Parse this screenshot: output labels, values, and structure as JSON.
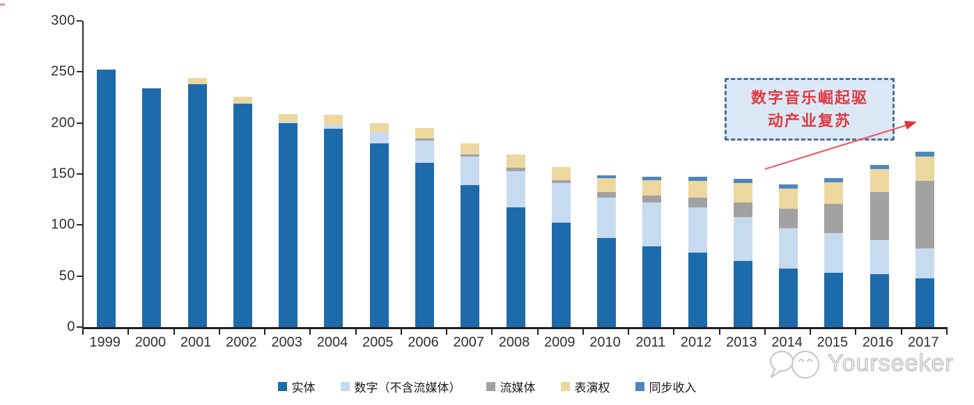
{
  "chart_data": {
    "type": "bar",
    "stacked": true,
    "title": "",
    "xlabel": "",
    "ylabel": "",
    "categories": [
      "1999",
      "2000",
      "2001",
      "2002",
      "2003",
      "2004",
      "2005",
      "2006",
      "2007",
      "2008",
      "2009",
      "2010",
      "2011",
      "2012",
      "2013",
      "2014",
      "2015",
      "2016",
      "2017"
    ],
    "series": [
      {
        "name": "实体",
        "color": "#1e6bac",
        "values": [
          252,
          234,
          238,
          219,
          200,
          194,
          180,
          161,
          139,
          117,
          102,
          87,
          79,
          73,
          65,
          57,
          53,
          52,
          48
        ]
      },
      {
        "name": "数字（不含流媒体）",
        "color": "#c7dbf0",
        "values": [
          0,
          0,
          0,
          0,
          1,
          4,
          11,
          22,
          28,
          36,
          39,
          40,
          43,
          44,
          43,
          40,
          39,
          33,
          29
        ]
      },
      {
        "name": "流媒体",
        "color": "#a2a2a2",
        "values": [
          0,
          0,
          0,
          0,
          0,
          0,
          0,
          2,
          2,
          3,
          3,
          5,
          7,
          10,
          14,
          19,
          29,
          47,
          66
        ]
      },
      {
        "name": "表演权",
        "color": "#ecd89f",
        "values": [
          0,
          0,
          6,
          7,
          8,
          10,
          9,
          10,
          11,
          13,
          13,
          14,
          15,
          16,
          19,
          20,
          21,
          23,
          24
        ]
      },
      {
        "name": "同步收入",
        "color": "#4f86c0",
        "values": [
          0,
          0,
          0,
          0,
          0,
          0,
          0,
          0,
          0,
          0,
          0,
          3,
          3,
          4,
          4,
          4,
          4,
          4,
          5
        ]
      }
    ],
    "ylim": [
      0,
      300
    ],
    "yticks": [
      0,
      50,
      100,
      150,
      200,
      250,
      300
    ],
    "grid": false,
    "legend_position": "bottom"
  },
  "annotation": {
    "text": "数字音乐崛起驱动产业复苏",
    "lines": [
      "数字音乐崛起驱",
      "动产业复苏"
    ],
    "border_color": "#4a6d96",
    "fill_color": "#dbe9f7",
    "text_color": "#e3383e",
    "arrow_color": "#ed5a62"
  },
  "watermark": {
    "text": "Yourseeker"
  }
}
